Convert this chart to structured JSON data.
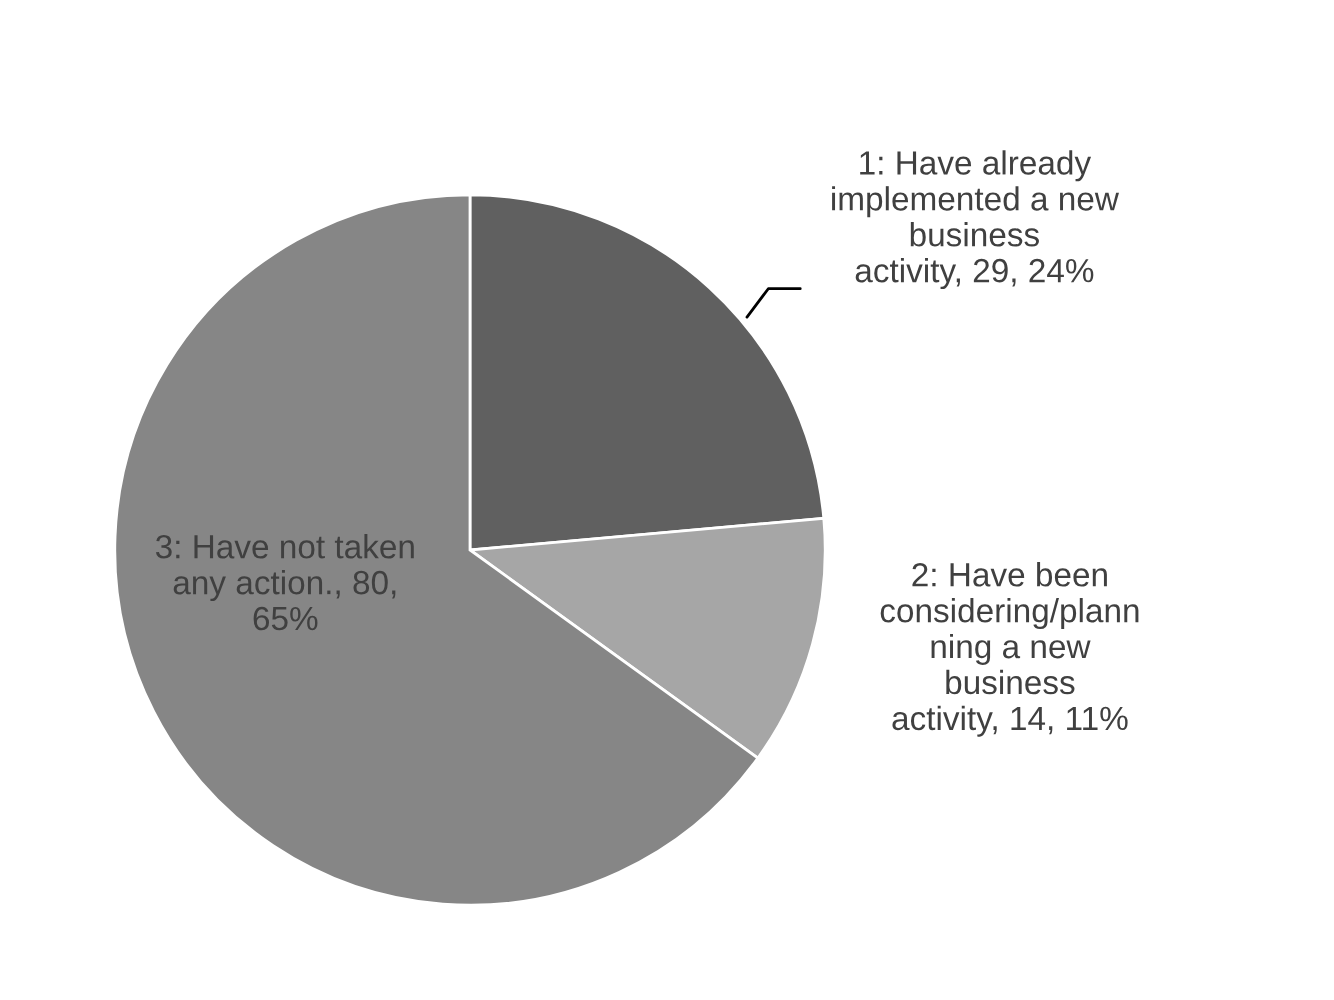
{
  "chart_data": {
    "type": "pie",
    "categories": [
      "1: Have already implemented a new business activity, 29, 24%",
      "2: Have been considering/plannning a new business activity, 14, 11%",
      "3: Have not taken any action., 80, 65%"
    ],
    "values": [
      29,
      14,
      80
    ],
    "colors": [
      "#606060",
      "#a6a6a6",
      "#868686"
    ]
  }
}
